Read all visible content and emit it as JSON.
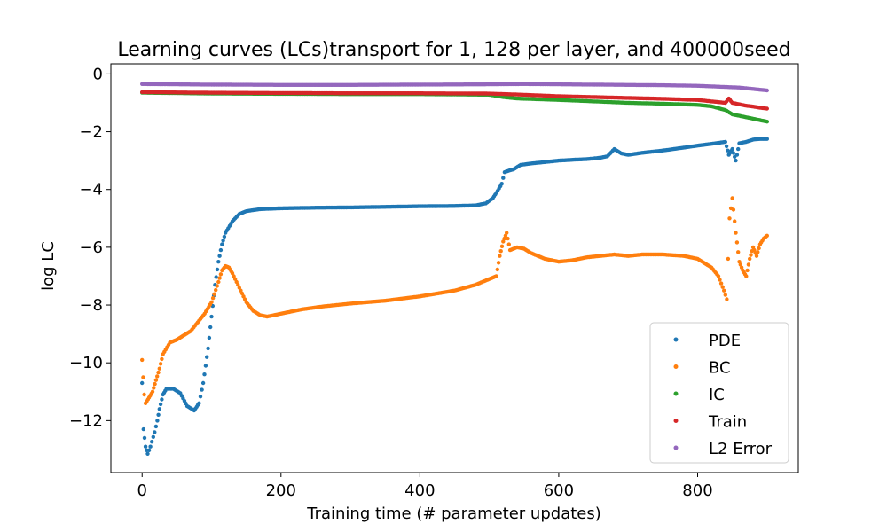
{
  "chart_data": {
    "type": "scatter",
    "title": "Learning curves (LCs)transport for 1, 128 per layer, and 400000seed",
    "xlabel": "Training time (# parameter updates)",
    "ylabel": "log LC",
    "xlim": [
      -45,
      945
    ],
    "ylim": [
      -13.8,
      0.35
    ],
    "xticks": [
      0,
      200,
      400,
      600,
      800
    ],
    "yticks": [
      0,
      -2,
      -4,
      -6,
      -8,
      -10,
      -12
    ],
    "xtick_labels": [
      "0",
      "200",
      "400",
      "600",
      "800"
    ],
    "ytick_labels": [
      "0",
      "−2",
      "−4",
      "−6",
      "−8",
      "−10",
      "−12"
    ],
    "legend_position": "lower-right",
    "grid": false,
    "series": [
      {
        "name": "PDE",
        "color": "#1f77b4",
        "points": [
          [
            0,
            -10.7
          ],
          [
            2,
            -12.3
          ],
          [
            5,
            -12.9
          ],
          [
            8,
            -13.15
          ],
          [
            12,
            -12.9
          ],
          [
            18,
            -12.4
          ],
          [
            22,
            -12.0
          ],
          [
            25,
            -11.6
          ],
          [
            30,
            -11.1
          ],
          [
            35,
            -10.9
          ],
          [
            45,
            -10.9
          ],
          [
            55,
            -11.05
          ],
          [
            65,
            -11.5
          ],
          [
            75,
            -11.65
          ],
          [
            82,
            -11.4
          ],
          [
            88,
            -10.7
          ],
          [
            95,
            -9.5
          ],
          [
            100,
            -8.4
          ],
          [
            105,
            -7.3
          ],
          [
            110,
            -6.5
          ],
          [
            115,
            -5.9
          ],
          [
            120,
            -5.5
          ],
          [
            130,
            -5.1
          ],
          [
            140,
            -4.85
          ],
          [
            150,
            -4.75
          ],
          [
            170,
            -4.68
          ],
          [
            200,
            -4.65
          ],
          [
            250,
            -4.63
          ],
          [
            300,
            -4.62
          ],
          [
            350,
            -4.6
          ],
          [
            400,
            -4.58
          ],
          [
            450,
            -4.57
          ],
          [
            480,
            -4.55
          ],
          [
            495,
            -4.48
          ],
          [
            505,
            -4.3
          ],
          [
            512,
            -4.05
          ],
          [
            518,
            -3.8
          ],
          [
            522,
            -3.4
          ],
          [
            528,
            -3.35
          ],
          [
            535,
            -3.3
          ],
          [
            545,
            -3.15
          ],
          [
            560,
            -3.1
          ],
          [
            580,
            -3.05
          ],
          [
            600,
            -3.0
          ],
          [
            620,
            -2.97
          ],
          [
            640,
            -2.95
          ],
          [
            660,
            -2.9
          ],
          [
            670,
            -2.85
          ],
          [
            680,
            -2.6
          ],
          [
            690,
            -2.75
          ],
          [
            700,
            -2.8
          ],
          [
            720,
            -2.73
          ],
          [
            750,
            -2.65
          ],
          [
            780,
            -2.55
          ],
          [
            800,
            -2.48
          ],
          [
            820,
            -2.42
          ],
          [
            840,
            -2.35
          ],
          [
            845,
            -2.8
          ],
          [
            850,
            -2.6
          ],
          [
            855,
            -3.0
          ],
          [
            860,
            -2.4
          ],
          [
            870,
            -2.35
          ],
          [
            880,
            -2.27
          ],
          [
            890,
            -2.25
          ],
          [
            900,
            -2.25
          ]
        ]
      },
      {
        "name": "BC",
        "color": "#ff7f0e",
        "points": [
          [
            0,
            -9.9
          ],
          [
            3,
            -11.1
          ],
          [
            5,
            -11.4
          ],
          [
            10,
            -11.2
          ],
          [
            15,
            -11.0
          ],
          [
            20,
            -10.6
          ],
          [
            25,
            -10.2
          ],
          [
            30,
            -9.7
          ],
          [
            40,
            -9.3
          ],
          [
            50,
            -9.2
          ],
          [
            60,
            -9.05
          ],
          [
            70,
            -8.9
          ],
          [
            80,
            -8.6
          ],
          [
            90,
            -8.3
          ],
          [
            100,
            -7.9
          ],
          [
            110,
            -7.2
          ],
          [
            115,
            -6.8
          ],
          [
            120,
            -6.65
          ],
          [
            125,
            -6.7
          ],
          [
            130,
            -6.9
          ],
          [
            140,
            -7.4
          ],
          [
            150,
            -7.9
          ],
          [
            160,
            -8.2
          ],
          [
            170,
            -8.35
          ],
          [
            180,
            -8.4
          ],
          [
            200,
            -8.3
          ],
          [
            230,
            -8.15
          ],
          [
            260,
            -8.05
          ],
          [
            300,
            -7.95
          ],
          [
            350,
            -7.85
          ],
          [
            400,
            -7.7
          ],
          [
            450,
            -7.5
          ],
          [
            480,
            -7.3
          ],
          [
            500,
            -7.1
          ],
          [
            510,
            -7.0
          ],
          [
            515,
            -6.3
          ],
          [
            520,
            -5.8
          ],
          [
            525,
            -5.5
          ],
          [
            530,
            -6.1
          ],
          [
            540,
            -6.0
          ],
          [
            550,
            -6.05
          ],
          [
            560,
            -6.2
          ],
          [
            580,
            -6.4
          ],
          [
            600,
            -6.5
          ],
          [
            620,
            -6.45
          ],
          [
            640,
            -6.35
          ],
          [
            660,
            -6.3
          ],
          [
            680,
            -6.25
          ],
          [
            700,
            -6.3
          ],
          [
            720,
            -6.25
          ],
          [
            750,
            -6.25
          ],
          [
            780,
            -6.3
          ],
          [
            800,
            -6.4
          ],
          [
            820,
            -6.7
          ],
          [
            830,
            -7.0
          ],
          [
            838,
            -7.5
          ],
          [
            842,
            -7.8
          ],
          [
            846,
            -5.0
          ],
          [
            850,
            -4.3
          ],
          [
            855,
            -5.5
          ],
          [
            860,
            -6.5
          ],
          [
            865,
            -6.8
          ],
          [
            870,
            -7.0
          ],
          [
            875,
            -6.4
          ],
          [
            880,
            -6.0
          ],
          [
            885,
            -6.3
          ],
          [
            890,
            -5.9
          ],
          [
            895,
            -5.7
          ],
          [
            900,
            -5.6
          ]
        ]
      },
      {
        "name": "IC",
        "color": "#2ca02c",
        "points": [
          [
            0,
            -0.65
          ],
          [
            100,
            -0.68
          ],
          [
            200,
            -0.69
          ],
          [
            300,
            -0.7
          ],
          [
            400,
            -0.7
          ],
          [
            500,
            -0.72
          ],
          [
            520,
            -0.8
          ],
          [
            540,
            -0.85
          ],
          [
            600,
            -0.9
          ],
          [
            650,
            -0.95
          ],
          [
            700,
            -1.0
          ],
          [
            750,
            -1.03
          ],
          [
            800,
            -1.07
          ],
          [
            820,
            -1.12
          ],
          [
            840,
            -1.25
          ],
          [
            850,
            -1.4
          ],
          [
            860,
            -1.45
          ],
          [
            870,
            -1.5
          ],
          [
            880,
            -1.55
          ],
          [
            890,
            -1.6
          ],
          [
            900,
            -1.65
          ]
        ]
      },
      {
        "name": "Train",
        "color": "#d62728",
        "points": [
          [
            0,
            -0.63
          ],
          [
            100,
            -0.65
          ],
          [
            200,
            -0.66
          ],
          [
            300,
            -0.67
          ],
          [
            400,
            -0.67
          ],
          [
            500,
            -0.68
          ],
          [
            550,
            -0.72
          ],
          [
            600,
            -0.77
          ],
          [
            650,
            -0.8
          ],
          [
            700,
            -0.83
          ],
          [
            750,
            -0.86
          ],
          [
            800,
            -0.9
          ],
          [
            820,
            -0.95
          ],
          [
            840,
            -1.0
          ],
          [
            845,
            -0.85
          ],
          [
            850,
            -1.0
          ],
          [
            860,
            -1.05
          ],
          [
            870,
            -1.1
          ],
          [
            880,
            -1.13
          ],
          [
            890,
            -1.17
          ],
          [
            900,
            -1.2
          ]
        ]
      },
      {
        "name": "L2 Error",
        "color": "#9467bd",
        "points": [
          [
            0,
            -0.35
          ],
          [
            100,
            -0.37
          ],
          [
            200,
            -0.38
          ],
          [
            300,
            -0.38
          ],
          [
            400,
            -0.37
          ],
          [
            500,
            -0.36
          ],
          [
            550,
            -0.35
          ],
          [
            600,
            -0.36
          ],
          [
            650,
            -0.37
          ],
          [
            700,
            -0.38
          ],
          [
            750,
            -0.39
          ],
          [
            800,
            -0.41
          ],
          [
            820,
            -0.43
          ],
          [
            840,
            -0.45
          ],
          [
            860,
            -0.47
          ],
          [
            880,
            -0.52
          ],
          [
            900,
            -0.57
          ]
        ]
      }
    ]
  }
}
